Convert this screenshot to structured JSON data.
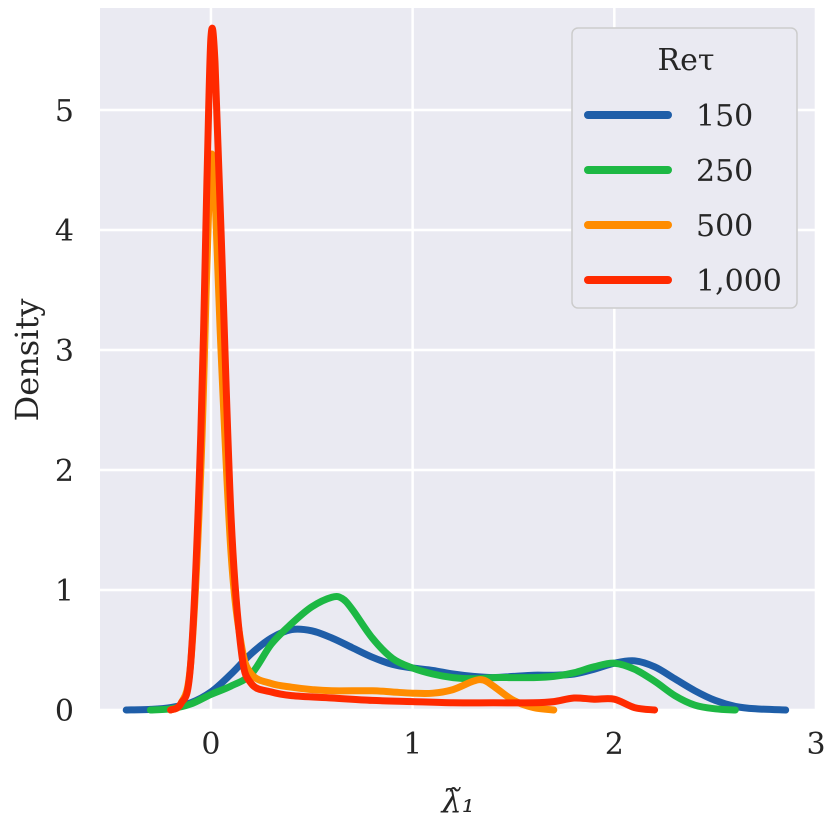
{
  "chart_data": {
    "type": "line",
    "title": "",
    "xlabel": "λ̃₁",
    "ylabel": "Density",
    "xlim": [
      -0.55,
      3.0
    ],
    "ylim": [
      0,
      5.85
    ],
    "x_ticks": [
      0,
      1,
      2,
      3
    ],
    "y_ticks": [
      0,
      1,
      2,
      3,
      4,
      5
    ],
    "grid": true,
    "background": "#EAEAF2",
    "legend": {
      "title": "Reτ",
      "position": "top-right"
    },
    "series": [
      {
        "name": "150",
        "color": "#1F5EA8",
        "points": [
          [
            -0.42,
            0
          ],
          [
            -0.3,
            0.005
          ],
          [
            -0.2,
            0.02
          ],
          [
            -0.1,
            0.06
          ],
          [
            0.0,
            0.15
          ],
          [
            0.1,
            0.3
          ],
          [
            0.2,
            0.47
          ],
          [
            0.3,
            0.6
          ],
          [
            0.4,
            0.67
          ],
          [
            0.5,
            0.66
          ],
          [
            0.6,
            0.6
          ],
          [
            0.7,
            0.52
          ],
          [
            0.8,
            0.44
          ],
          [
            0.9,
            0.38
          ],
          [
            1.0,
            0.35
          ],
          [
            1.1,
            0.33
          ],
          [
            1.2,
            0.3
          ],
          [
            1.3,
            0.28
          ],
          [
            1.4,
            0.27
          ],
          [
            1.5,
            0.28
          ],
          [
            1.6,
            0.29
          ],
          [
            1.7,
            0.29
          ],
          [
            1.8,
            0.3
          ],
          [
            1.9,
            0.34
          ],
          [
            2.0,
            0.39
          ],
          [
            2.1,
            0.41
          ],
          [
            2.2,
            0.36
          ],
          [
            2.3,
            0.26
          ],
          [
            2.4,
            0.16
          ],
          [
            2.5,
            0.08
          ],
          [
            2.6,
            0.03
          ],
          [
            2.7,
            0.01
          ],
          [
            2.85,
            0
          ]
        ]
      },
      {
        "name": "250",
        "color": "#1DB844",
        "points": [
          [
            -0.3,
            0
          ],
          [
            -0.2,
            0.01
          ],
          [
            -0.1,
            0.05
          ],
          [
            0.0,
            0.13
          ],
          [
            0.1,
            0.2
          ],
          [
            0.2,
            0.3
          ],
          [
            0.3,
            0.55
          ],
          [
            0.4,
            0.72
          ],
          [
            0.5,
            0.86
          ],
          [
            0.6,
            0.94
          ],
          [
            0.65,
            0.93
          ],
          [
            0.7,
            0.84
          ],
          [
            0.8,
            0.6
          ],
          [
            0.9,
            0.43
          ],
          [
            1.0,
            0.35
          ],
          [
            1.1,
            0.3
          ],
          [
            1.2,
            0.27
          ],
          [
            1.3,
            0.26
          ],
          [
            1.4,
            0.27
          ],
          [
            1.5,
            0.27
          ],
          [
            1.6,
            0.27
          ],
          [
            1.7,
            0.28
          ],
          [
            1.8,
            0.31
          ],
          [
            1.9,
            0.36
          ],
          [
            2.0,
            0.39
          ],
          [
            2.1,
            0.34
          ],
          [
            2.2,
            0.24
          ],
          [
            2.3,
            0.12
          ],
          [
            2.4,
            0.04
          ],
          [
            2.5,
            0.01
          ],
          [
            2.6,
            0
          ]
        ]
      },
      {
        "name": "500",
        "color": "#FF8C00",
        "points": [
          [
            -0.2,
            0
          ],
          [
            -0.15,
            0.05
          ],
          [
            -0.1,
            0.4
          ],
          [
            -0.05,
            2.0
          ],
          [
            -0.02,
            3.7
          ],
          [
            0.0,
            4.6
          ],
          [
            0.02,
            4.3
          ],
          [
            0.05,
            3.0
          ],
          [
            0.1,
            1.3
          ],
          [
            0.15,
            0.55
          ],
          [
            0.2,
            0.3
          ],
          [
            0.3,
            0.22
          ],
          [
            0.4,
            0.19
          ],
          [
            0.5,
            0.17
          ],
          [
            0.6,
            0.16
          ],
          [
            0.8,
            0.16
          ],
          [
            0.9,
            0.15
          ],
          [
            1.0,
            0.14
          ],
          [
            1.1,
            0.14
          ],
          [
            1.2,
            0.17
          ],
          [
            1.3,
            0.24
          ],
          [
            1.35,
            0.25
          ],
          [
            1.4,
            0.2
          ],
          [
            1.5,
            0.08
          ],
          [
            1.6,
            0.02
          ],
          [
            1.7,
            0
          ]
        ]
      },
      {
        "name": "1,000",
        "color": "#FF2A00",
        "points": [
          [
            -0.2,
            0
          ],
          [
            -0.15,
            0.05
          ],
          [
            -0.1,
            0.4
          ],
          [
            -0.05,
            2.3
          ],
          [
            -0.02,
            4.4
          ],
          [
            0.0,
            5.6
          ],
          [
            0.02,
            5.4
          ],
          [
            0.05,
            4.0
          ],
          [
            0.1,
            1.6
          ],
          [
            0.15,
            0.5
          ],
          [
            0.2,
            0.22
          ],
          [
            0.3,
            0.15
          ],
          [
            0.4,
            0.12
          ],
          [
            0.6,
            0.1
          ],
          [
            0.8,
            0.08
          ],
          [
            1.0,
            0.07
          ],
          [
            1.2,
            0.06
          ],
          [
            1.4,
            0.06
          ],
          [
            1.6,
            0.06
          ],
          [
            1.7,
            0.07
          ],
          [
            1.8,
            0.1
          ],
          [
            1.9,
            0.09
          ],
          [
            2.0,
            0.09
          ],
          [
            2.1,
            0.02
          ],
          [
            2.2,
            0
          ]
        ]
      }
    ]
  }
}
